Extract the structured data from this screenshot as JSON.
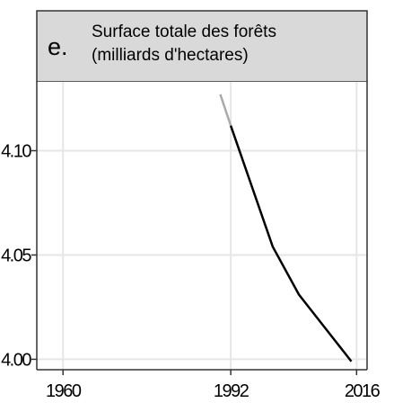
{
  "panel": {
    "letter": "e.",
    "title_line1": "Surface totale des forêts",
    "title_line2": "(milliards d'hectares)"
  },
  "colors": {
    "strip_fill": "#d9d9d9",
    "grid": "#e6e6e6",
    "series_main": "#000000",
    "series_light": "#aaaaaa"
  },
  "chart_data": {
    "type": "line",
    "title": "Surface totale des forêts (milliards d'hectares)",
    "xlabel": "",
    "ylabel": "",
    "xlim": [
      1955,
      2018
    ],
    "ylim": [
      3.995,
      4.133
    ],
    "x_ticks": [
      1960,
      1992,
      2016
    ],
    "x_tick_labels": [
      "1960",
      "1992",
      "2016"
    ],
    "y_ticks": [
      4.0,
      4.05,
      4.1
    ],
    "y_tick_labels": [
      "4.00",
      "4.05",
      "4.10"
    ],
    "grid": true,
    "series": [
      {
        "style": "light",
        "x": [
          1990,
          1992
        ],
        "y": [
          4.127,
          4.112
        ]
      },
      {
        "style": "main",
        "x": [
          1992,
          2000,
          2005,
          2010,
          2015
        ],
        "y": [
          4.112,
          4.054,
          4.031,
          4.015,
          3.999
        ]
      }
    ]
  }
}
